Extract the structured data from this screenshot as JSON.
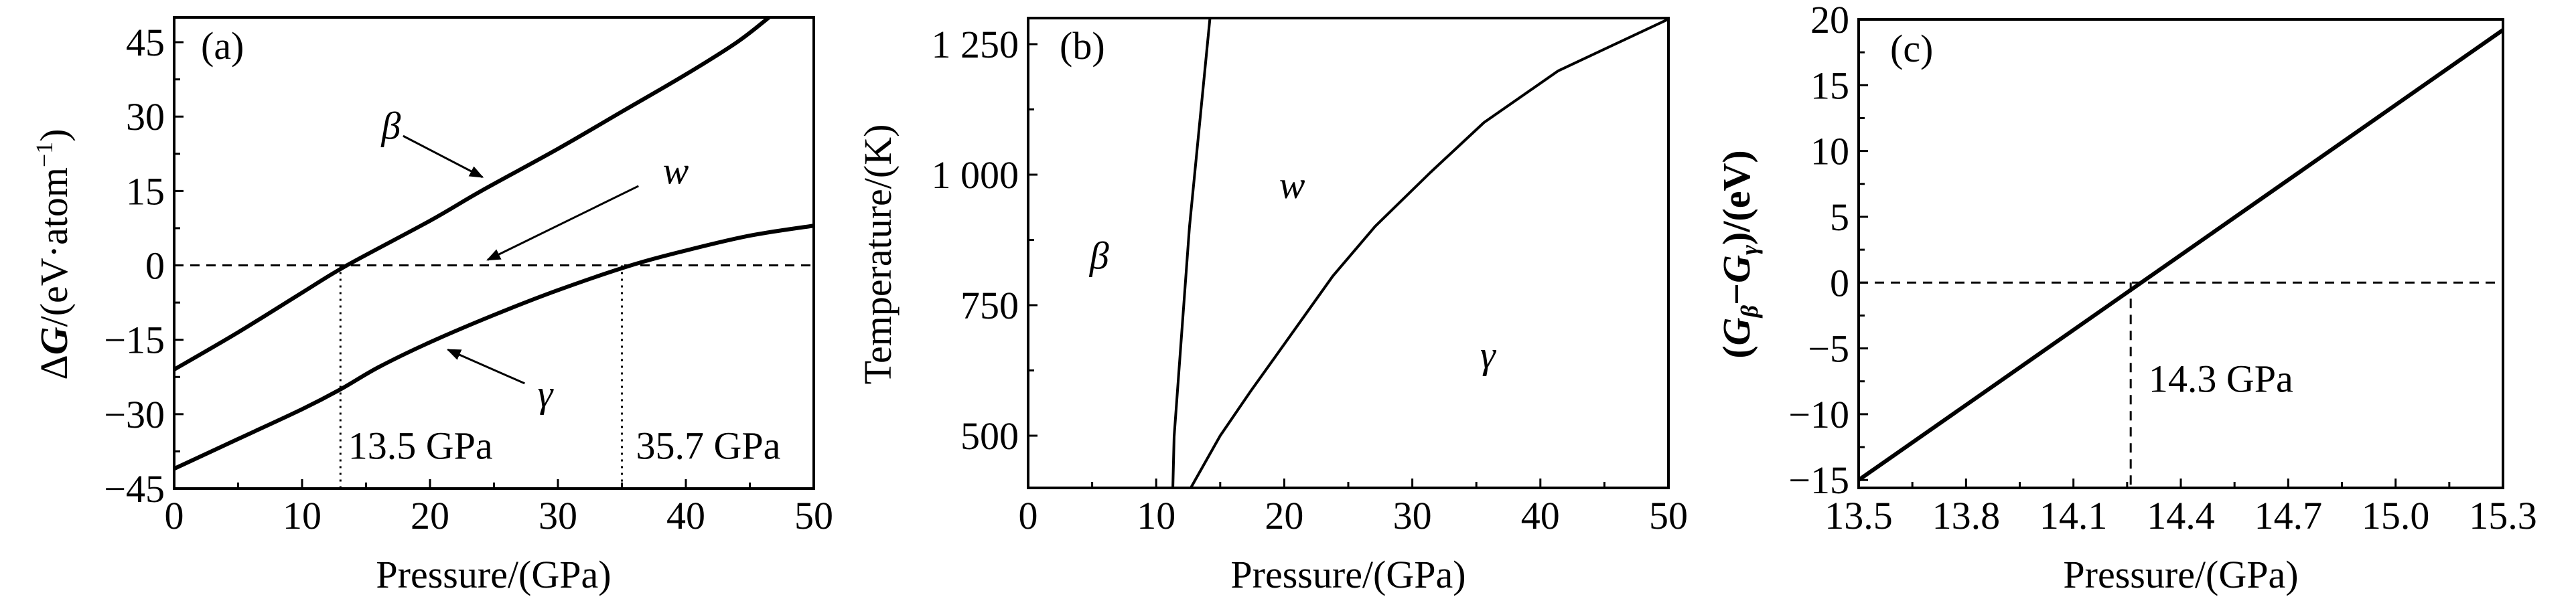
{
  "chart_data": [
    {
      "type": "line",
      "panel_label": "(a)",
      "xlabel": "Pressure/(GPa)",
      "ylabel": {
        "prefix": "Δ",
        "italic": "G",
        "rest": "/(eV·atom",
        "sup": "−1",
        "close": ")"
      },
      "xlim": [
        0,
        50
      ],
      "ylim": [
        -45,
        50
      ],
      "xticks": [
        0,
        10,
        20,
        30,
        40,
        50
      ],
      "xtick_labels": [
        "0",
        "10",
        "20",
        "30",
        "40",
        "50"
      ],
      "yticks": [
        -45,
        -30,
        -15,
        0,
        15,
        30,
        45
      ],
      "ytick_labels": [
        "−45",
        "−30",
        "−15",
        "0",
        "15",
        "30",
        "45"
      ],
      "x_minor_step": 5,
      "y_minor_step": 7.5,
      "grid": false,
      "series": [
        {
          "x": [
            0,
            5,
            10,
            13.5,
            20,
            24,
            30,
            35,
            40,
            44,
            46.5
          ],
          "y": [
            -21,
            -13.5,
            -5.5,
            0,
            9,
            15,
            23.5,
            31,
            38.5,
            45,
            50
          ]
        },
        {
          "x": [
            0,
            5,
            10,
            13,
            16,
            20,
            25,
            30,
            35.7,
            40,
            45,
            50
          ],
          "y": [
            -41,
            -35,
            -29,
            -25,
            -20.5,
            -15.5,
            -10,
            -5,
            0,
            3,
            6,
            8
          ]
        }
      ],
      "reference_lines": [
        {
          "kind": "hline",
          "y": 0,
          "style": "dashed"
        },
        {
          "kind": "vline",
          "x": 13,
          "y_to": 0,
          "style": "dotted"
        },
        {
          "kind": "vline",
          "x": 35,
          "y_to": 0,
          "style": "dotted"
        }
      ],
      "annotations": [
        {
          "text": "β",
          "x": 16.2,
          "y": 25.5,
          "italic": true
        },
        {
          "text": "w",
          "x": 38.2,
          "y": 16.5,
          "italic": true
        },
        {
          "text": "γ",
          "x": 28.4,
          "y": -28.5,
          "italic": true
        },
        {
          "text": "13.5 GPa",
          "x": 13.6,
          "y": -39,
          "italic": false
        },
        {
          "text": "35.7 GPa",
          "x": 36.1,
          "y": -39,
          "italic": false
        }
      ],
      "arrows": [
        {
          "from": [
            17.9,
            26.1
          ],
          "to": [
            24.1,
            17.8
          ]
        },
        {
          "from": [
            36.3,
            16
          ],
          "to": [
            24.5,
            1.1
          ]
        },
        {
          "from": [
            27.4,
            -23.8
          ],
          "to": [
            21.4,
            -17
          ]
        }
      ]
    },
    {
      "type": "line",
      "panel_label": "(b)",
      "xlabel": "Pressure/(GPa)",
      "ylabel": {
        "text": "Temperature/(K)"
      },
      "xlim": [
        0,
        50
      ],
      "ylim": [
        400,
        1300
      ],
      "xticks": [
        0,
        10,
        20,
        30,
        40,
        50
      ],
      "xtick_labels": [
        "0",
        "10",
        "20",
        "30",
        "40",
        "50"
      ],
      "yticks": [
        500,
        750,
        1000,
        1250
      ],
      "ytick_labels": [
        "500",
        "750",
        "1 000",
        "1 250"
      ],
      "x_minor_step": 5,
      "y_minor_step": 125,
      "grid": false,
      "series": [
        {
          "x": [
            11.3,
            11.4,
            12.6,
            14.2
          ],
          "y": [
            400,
            498,
            900,
            1300
          ]
        },
        {
          "x": [
            12.7,
            15,
            17.4,
            20.4,
            23.8,
            27.1,
            31.4,
            35.6,
            41.4,
            50
          ],
          "y": [
            400,
            500,
            586,
            689,
            806,
            901,
            1004,
            1100,
            1199,
            1298
          ]
        }
      ],
      "reference_lines": [],
      "annotations": [
        {
          "text": "β",
          "x": 4.8,
          "y": 820,
          "italic": true
        },
        {
          "text": "w",
          "x": 19.6,
          "y": 955,
          "italic": true
        },
        {
          "text": "γ",
          "x": 35.3,
          "y": 630,
          "italic": true
        }
      ],
      "arrows": []
    },
    {
      "type": "line",
      "panel_label": "(c)",
      "xlabel": "Pressure/(GPa)",
      "ylabel": {
        "open": "(",
        "g1": "G",
        "sub1": "β",
        "minus": "−",
        "g2": "G",
        "sub2": "γ",
        "rest": ")/(eV)"
      },
      "xlim": [
        13.5,
        15.3
      ],
      "ylim": [
        -15.6,
        20
      ],
      "xticks": [
        13.5,
        13.8,
        14.1,
        14.4,
        14.7,
        15.0,
        15.3
      ],
      "xtick_labels": [
        "13.5",
        "13.8",
        "14.1",
        "14.4",
        "14.7",
        "15.0",
        "15.3"
      ],
      "yticks": [
        -15,
        -10,
        -5,
        0,
        5,
        10,
        15,
        20
      ],
      "ytick_labels": [
        "−15",
        "−10",
        "−5",
        "0",
        "5",
        "10",
        "15",
        "20"
      ],
      "x_minor_step": 0.15,
      "y_minor_step": 2.5,
      "grid": false,
      "series": [
        {
          "x": [
            13.5,
            15.3
          ],
          "y": [
            -15,
            19.2
          ]
        }
      ],
      "reference_lines": [
        {
          "kind": "hline",
          "y": 0,
          "style": "dashed"
        },
        {
          "kind": "vline",
          "x": 14.26,
          "y_to": 0,
          "style": "dashed"
        }
      ],
      "annotations": [
        {
          "text": "14.3 GPa",
          "x": 14.31,
          "y": -8.3,
          "italic": false
        }
      ],
      "arrows": []
    }
  ]
}
